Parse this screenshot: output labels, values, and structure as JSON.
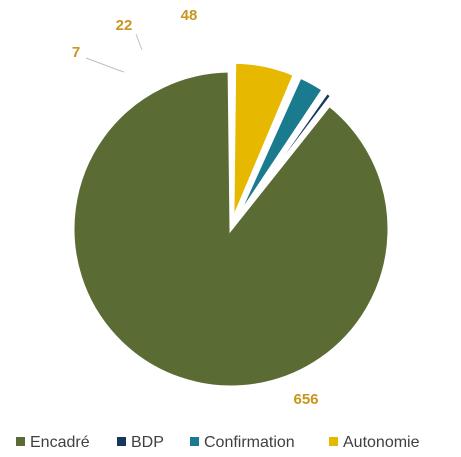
{
  "chart_data": {
    "type": "pie",
    "categories": [
      "Encadré",
      "BDP",
      "Confirmation",
      "Autonomie"
    ],
    "values": [
      656,
      7,
      22,
      48
    ],
    "data_labels": [
      "656",
      "7",
      "22",
      "48"
    ],
    "colors": [
      "#5b6b34",
      "#17375e",
      "#1b7b8e",
      "#e6b800"
    ],
    "title": "",
    "legend_position": "bottom",
    "exploded": true,
    "start_angle": "12 o'clock",
    "direction": "counterclockwise"
  }
}
